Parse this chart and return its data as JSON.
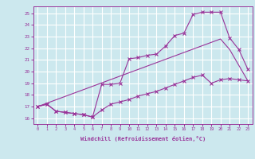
{
  "xlabel": "Windchill (Refroidissement éolien,°C)",
  "bg_color": "#cce8ee",
  "grid_color": "#ffffff",
  "line_color": "#993399",
  "ylim": [
    15.5,
    25.6
  ],
  "xlim": [
    -0.5,
    23.5
  ],
  "yticks": [
    16,
    17,
    18,
    19,
    20,
    21,
    22,
    23,
    24,
    25
  ],
  "xticks": [
    0,
    1,
    2,
    3,
    4,
    5,
    6,
    7,
    8,
    9,
    10,
    11,
    12,
    13,
    14,
    15,
    16,
    17,
    18,
    19,
    20,
    21,
    22,
    23
  ],
  "line1_x": [
    0,
    1,
    2,
    3,
    4,
    5,
    6,
    7,
    8,
    9,
    10,
    11,
    12,
    13,
    14,
    15,
    16,
    17,
    18,
    19,
    20,
    21,
    22,
    23
  ],
  "line1_y": [
    17.0,
    17.2,
    16.6,
    16.5,
    16.4,
    16.3,
    16.1,
    18.9,
    18.9,
    19.0,
    21.1,
    21.2,
    21.4,
    21.5,
    22.2,
    23.1,
    23.3,
    24.9,
    25.1,
    25.1,
    25.1,
    22.9,
    21.9,
    20.2
  ],
  "line2_x": [
    0,
    1,
    2,
    3,
    4,
    5,
    6,
    7,
    8,
    9,
    10,
    11,
    12,
    13,
    14,
    15,
    16,
    17,
    18,
    19,
    20,
    21,
    22,
    23
  ],
  "line2_y": [
    17.0,
    17.2,
    16.6,
    16.5,
    16.4,
    16.3,
    16.1,
    16.7,
    17.2,
    17.4,
    17.6,
    17.9,
    18.1,
    18.3,
    18.6,
    18.9,
    19.2,
    19.5,
    19.7,
    19.0,
    19.3,
    19.4,
    19.3,
    19.2
  ],
  "line3_x": [
    0,
    20,
    21,
    23
  ],
  "line3_y": [
    17.0,
    22.8,
    21.9,
    19.2
  ]
}
